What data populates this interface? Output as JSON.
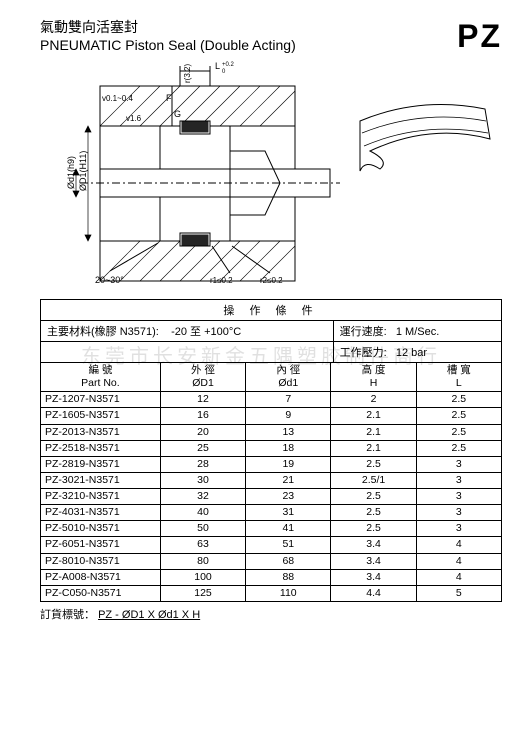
{
  "title": {
    "cn": "氣動雙向活塞封",
    "en": "PNEUMATIC Piston Seal (Double Acting)",
    "code": "PZ"
  },
  "diagram_labels": {
    "tol_top": "L +0.2 / 0",
    "tol_r": "r(3.2)",
    "f": "F",
    "g": "G",
    "corner_r": "v0.1~0.4",
    "v16": "v1.6",
    "od": "ØD1(H11)",
    "id": "Ød1(h9)",
    "angle": "20~30°",
    "r1": "r1≤0.2",
    "r2": "r2≤0.2"
  },
  "operating": {
    "header": "操 作 條 件",
    "material_label": "主要材料(橡膠 N3571):",
    "material_value": "-20 至 +100°C",
    "speed_label": "運行速度:",
    "speed_value": "1 M/Sec.",
    "pressure_label": "工作壓力:",
    "pressure_value": "12 bar"
  },
  "watermark": "东莞市长安新金五隅塑胶制件商行",
  "columns": {
    "pn_cn": "編 號",
    "pn_en": "Part No.",
    "od_cn": "外 徑",
    "od_sym": "ØD1",
    "id_cn": "內 徑",
    "id_sym": "Ød1",
    "h_cn": "高 度",
    "h_sym": "H",
    "l_cn": "槽 寬",
    "l_sym": "L"
  },
  "rows": [
    {
      "pn": "PZ-1207-N3571",
      "od": "12",
      "id": "7",
      "h": "2",
      "l": "2.5"
    },
    {
      "pn": "PZ-1605-N3571",
      "od": "16",
      "id": "9",
      "h": "2.1",
      "l": "2.5"
    },
    {
      "pn": "PZ-2013-N3571",
      "od": "20",
      "id": "13",
      "h": "2.1",
      "l": "2.5"
    },
    {
      "pn": "PZ-2518-N3571",
      "od": "25",
      "id": "18",
      "h": "2.1",
      "l": "2.5"
    },
    {
      "pn": "PZ-2819-N3571",
      "od": "28",
      "id": "19",
      "h": "2.5",
      "l": "3"
    },
    {
      "pn": "PZ-3021-N3571",
      "od": "30",
      "id": "21",
      "h": "2.5/1",
      "l": "3"
    },
    {
      "pn": "PZ-3210-N3571",
      "od": "32",
      "id": "23",
      "h": "2.5",
      "l": "3"
    },
    {
      "pn": "PZ-4031-N3571",
      "od": "40",
      "id": "31",
      "h": "2.5",
      "l": "3"
    },
    {
      "pn": "PZ-5010-N3571",
      "od": "50",
      "id": "41",
      "h": "2.5",
      "l": "3"
    },
    {
      "pn": "PZ-6051-N3571",
      "od": "63",
      "id": "51",
      "h": "3.4",
      "l": "4"
    },
    {
      "pn": "PZ-8010-N3571",
      "od": "80",
      "id": "68",
      "h": "3.4",
      "l": "4"
    },
    {
      "pn": "PZ-A008-N3571",
      "od": "100",
      "id": "88",
      "h": "3.4",
      "l": "4"
    },
    {
      "pn": "PZ-C050-N3571",
      "od": "125",
      "id": "110",
      "h": "4.4",
      "l": "5"
    }
  ],
  "order": {
    "label": "訂貨標號：",
    "format": "PZ - ØD1 X Ød1 X H"
  }
}
